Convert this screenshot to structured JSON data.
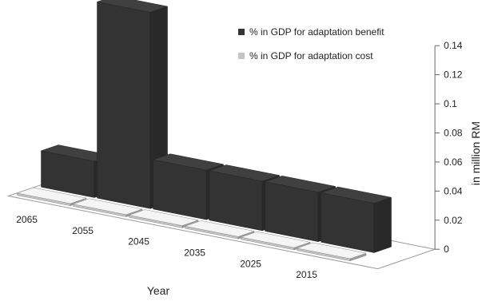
{
  "chart_data": {
    "type": "bar",
    "style": "3d-clustered",
    "categories": [
      "2065",
      "2055",
      "2045",
      "2035",
      "2025",
      "2015"
    ],
    "series": [
      {
        "name": "% in GDP for adaptation benefit",
        "color": "#333333",
        "values": [
          0.025,
          0.135,
          0.034,
          0.034,
          0.034,
          0.034
        ]
      },
      {
        "name": "% in GDP for adaptation cost",
        "color": "#c4c4c4",
        "values": [
          0.0015,
          0.0015,
          0.0015,
          0.0015,
          0.0015,
          0.0015
        ]
      }
    ],
    "xlabel": "Year",
    "ylabel": "in million RM",
    "ylim": [
      0,
      0.14
    ],
    "y_ticks": [
      "0",
      "0.02",
      "0.04",
      "0.06",
      "0.08",
      "0.1",
      "0.12",
      "0.14"
    ],
    "y_axis_side": "right",
    "legend": "top-right"
  }
}
